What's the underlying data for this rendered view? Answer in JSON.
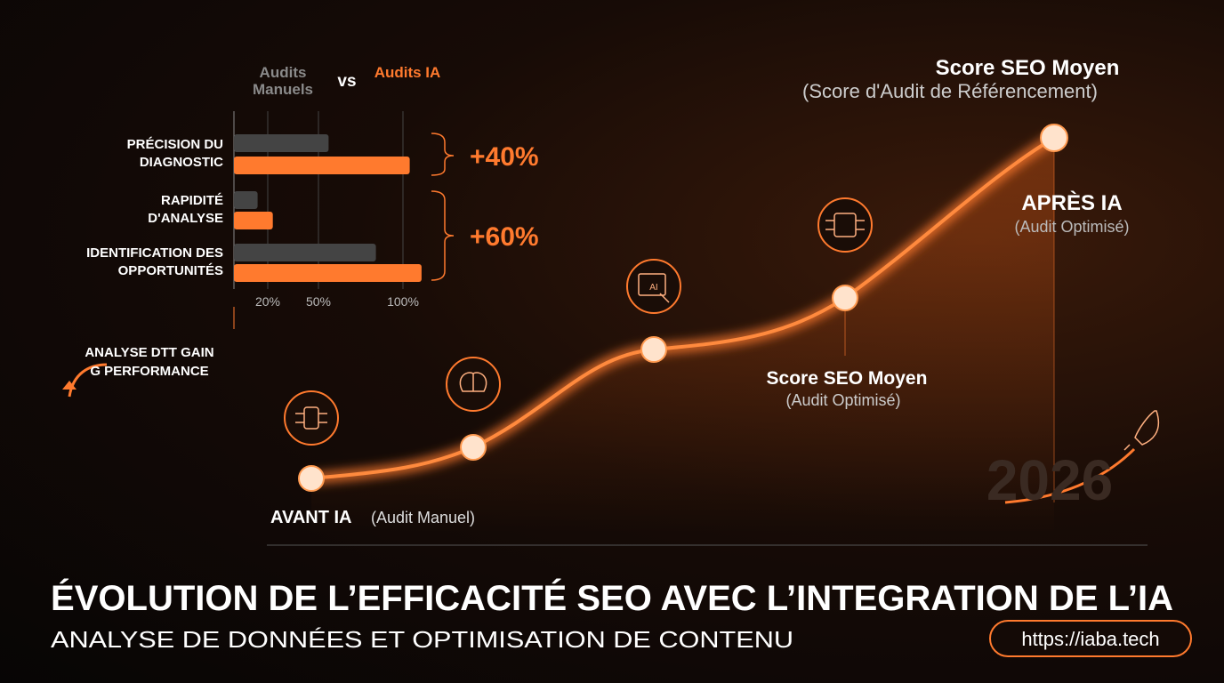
{
  "chart_data": {
    "type": "hbar",
    "categories": [
      "PRÉCISION DU DIAGNOSTIC",
      "RAPIDITÉ D'ANALYSE",
      "IDENTIFICATION DES OPPORTUNITÉS"
    ],
    "series": [
      {
        "name": "Audits Manuels",
        "color": "#444444",
        "values": [
          56,
          14,
          84
        ]
      },
      {
        "name": "Audits IA",
        "color": "#ff7a2e",
        "values": [
          104,
          23,
          111
        ]
      }
    ],
    "legend_separator": "vs",
    "xlim": [
      0,
      115
    ],
    "xticks": [
      {
        "value": 20,
        "label": "20%"
      },
      {
        "value": 50,
        "label": "50%"
      },
      {
        "value": 100,
        "label": "100%"
      }
    ],
    "grid": true,
    "annotations": [
      "+40%",
      "+60%"
    ],
    "note": "ANALYSE DTT GAIN G PERFORMANCE"
  },
  "curve": {
    "title": "Score SEO Moyen",
    "subtitle": "(Score d'Audit de Référencement)",
    "start_label": "AVANT IA",
    "start_sub": "(Audit Manuel)",
    "mid_label": "Score SEO Moyen",
    "mid_sub": "(Audit Optimisé)",
    "end_label": "APRÈS IA",
    "end_sub": "(Audit Optimisé)",
    "icon_text": "AI",
    "year": "2026"
  },
  "footer": {
    "title": "ÉVOLUTION DE L’EFFICACITÉ SEO AVEC L’INTEGRATION DE L’IA",
    "subtitle": "ANALYSE DE DONNÉES ET OPTIMISATION DE CONTENU",
    "url": "https://iaba.tech"
  }
}
